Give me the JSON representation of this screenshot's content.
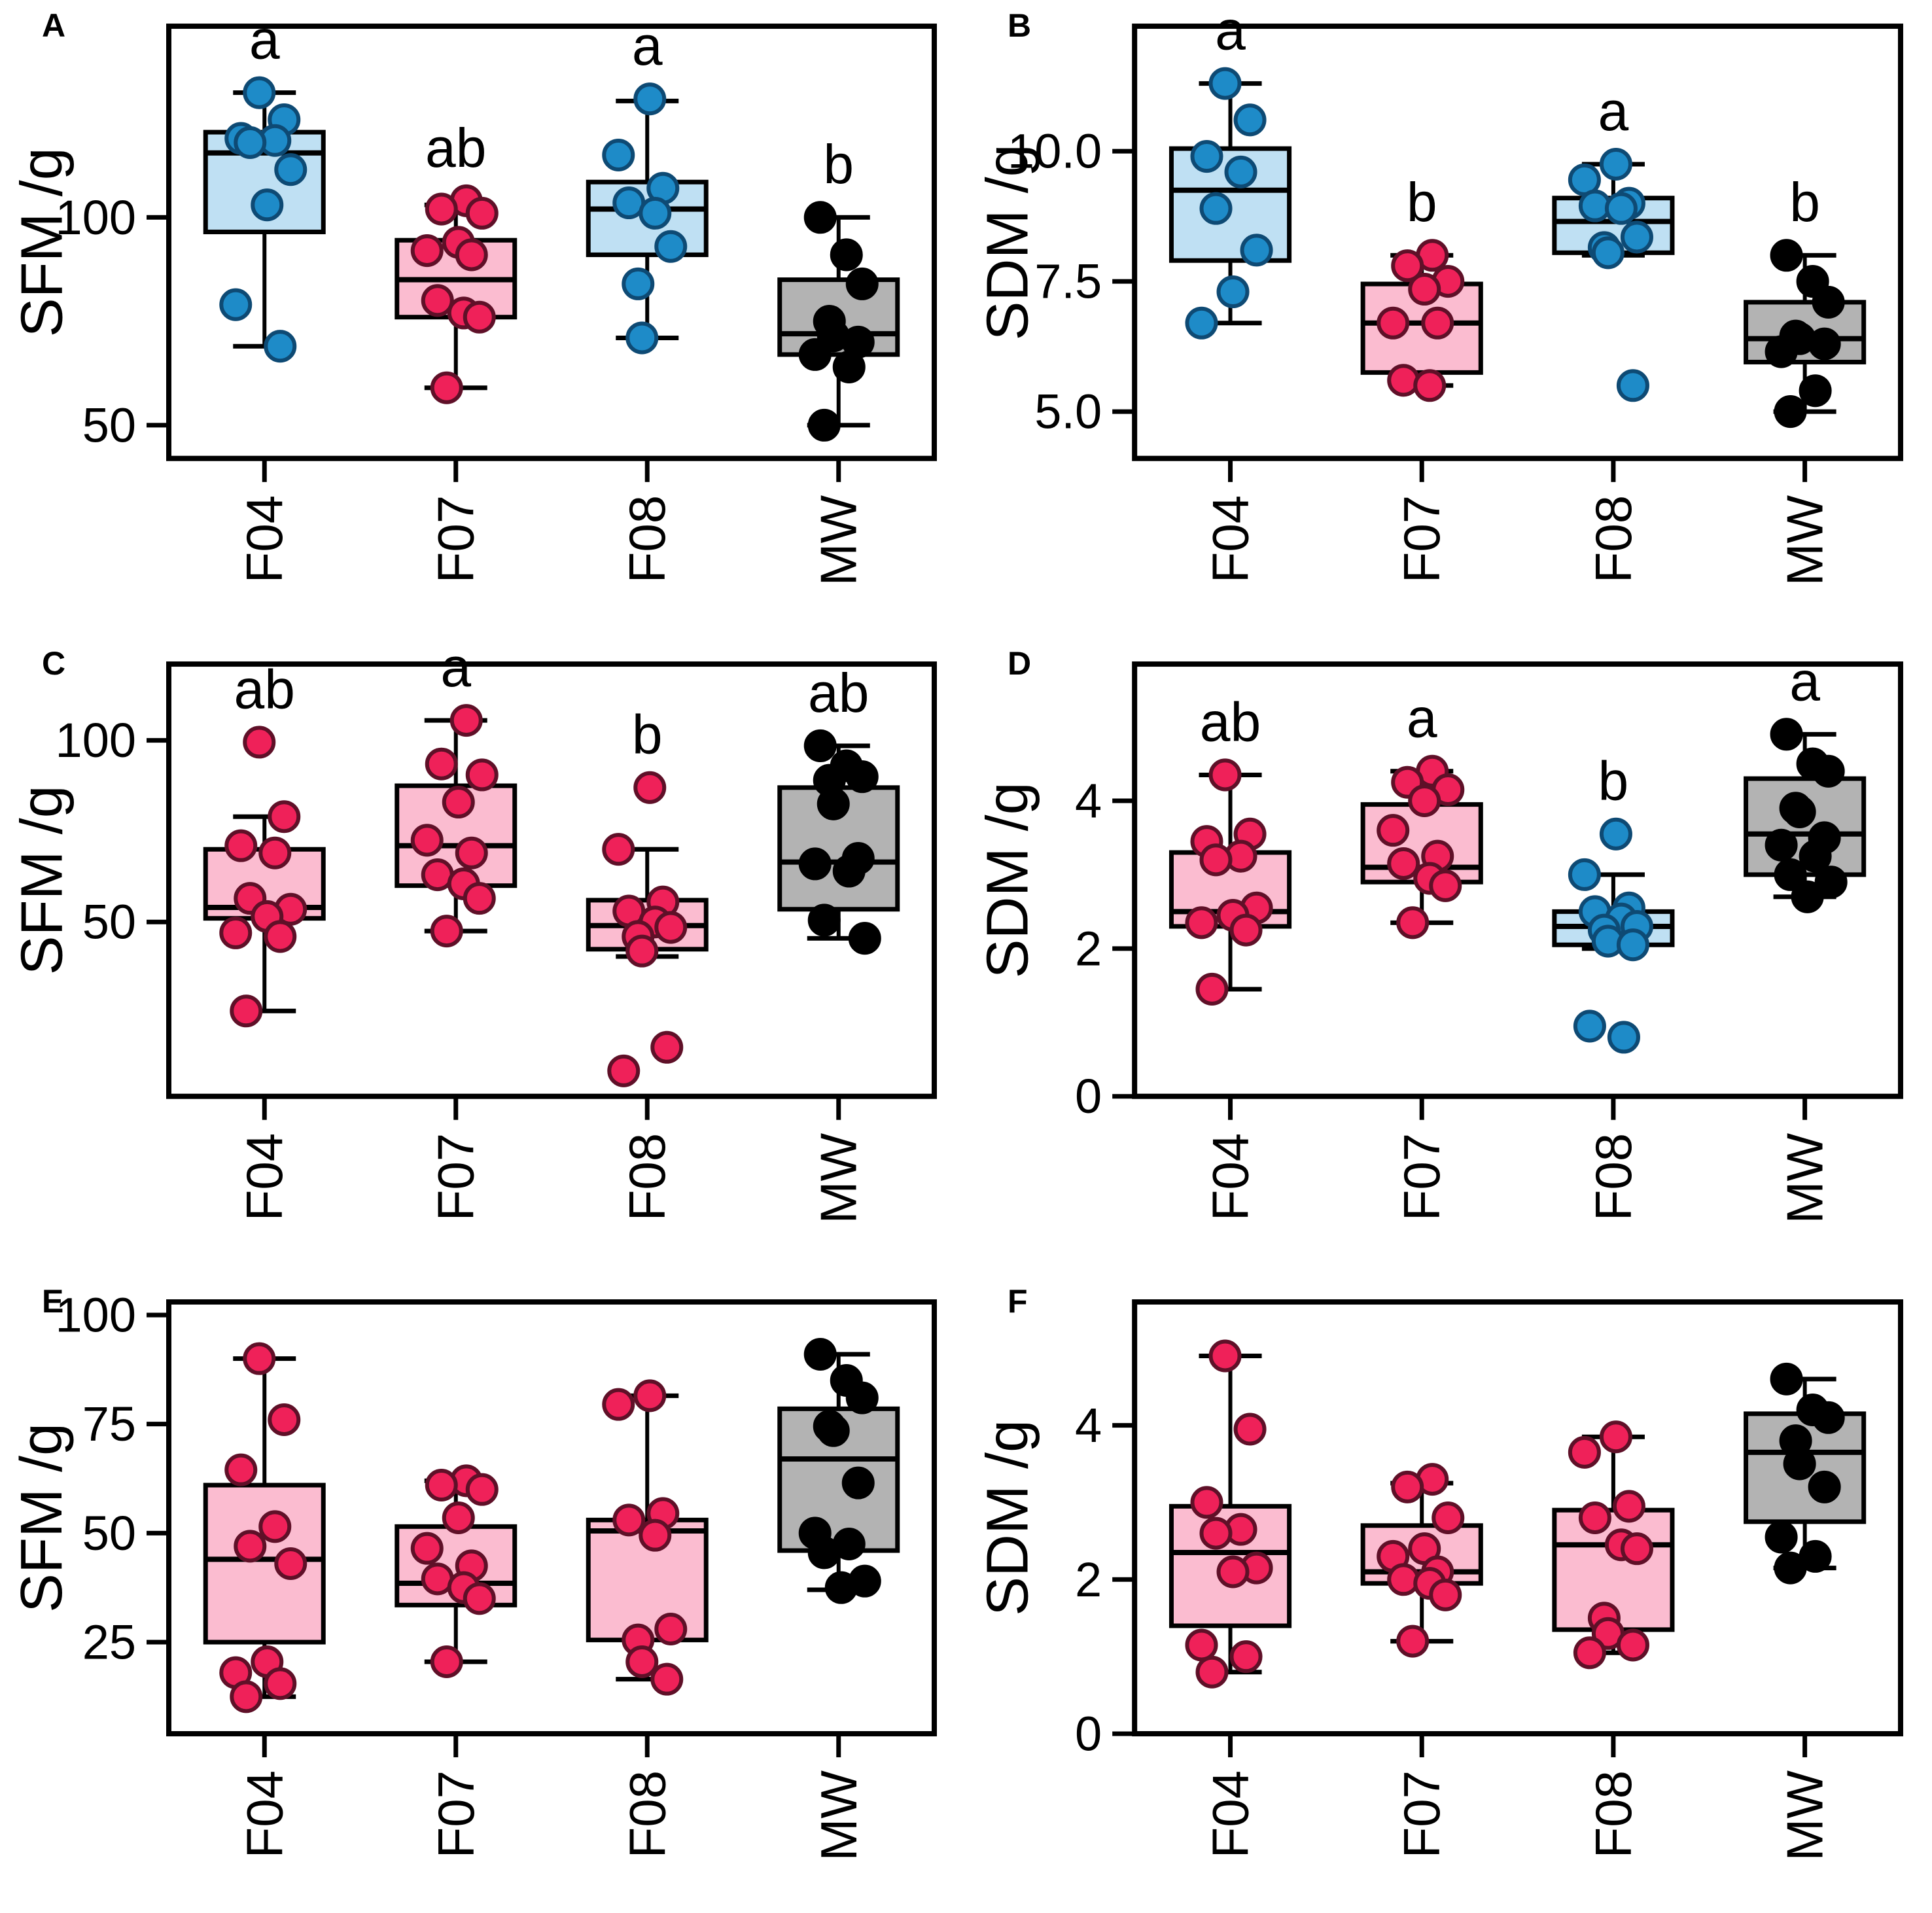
{
  "figure": {
    "background": "#ffffff"
  },
  "colors": {
    "frame": "#000000",
    "blue_box": "#bfe0f3",
    "blue_point": "#1e8bc8",
    "blue_point_stroke": "#0e4a74",
    "pink_box": "#fbbcd0",
    "pink_point": "#ef2159",
    "pink_point_stroke": "#5f1028",
    "gray_box": "#b3b3b3",
    "black_point": "#000000",
    "black_point_stroke": "#000000"
  },
  "chart_data": [
    {
      "panel": "A",
      "type": "box",
      "ylabel": "SFM /g",
      "categories": [
        "F04",
        "F07",
        "F08",
        "MW"
      ],
      "ytick_labels": [
        "50",
        "100"
      ],
      "ytick_values": [
        50,
        100
      ],
      "ylim": [
        42,
        146
      ],
      "grid": false,
      "groups": [
        {
          "name": "F04",
          "sig": "a",
          "color": "blue",
          "q1": 96.5,
          "median": 115.5,
          "q3": 120.5,
          "whisker_low": 69,
          "whisker_high": 130,
          "points": [
            130,
            123.5,
            119,
            118.5,
            118,
            111.5,
            103,
            79,
            69
          ]
        },
        {
          "name": "F07",
          "sig": "ab",
          "color": "pink",
          "q1": 76,
          "median": 85,
          "q3": 94.5,
          "whisker_low": 59,
          "whisker_high": 103,
          "points": [
            104,
            102,
            101,
            94,
            92,
            91,
            80,
            77,
            76,
            59
          ]
        },
        {
          "name": "F08",
          "sig": "a",
          "color": "blue",
          "q1": 91,
          "median": 102,
          "q3": 108.5,
          "whisker_low": 71,
          "whisker_high": 128,
          "points": [
            128.5,
            115,
            107,
            103.5,
            101,
            93,
            84,
            71
          ]
        },
        {
          "name": "MW",
          "sig": "b",
          "color": "gray",
          "q1": 67,
          "median": 72,
          "q3": 85,
          "whisker_low": 50,
          "whisker_high": 100,
          "points": [
            100,
            91,
            84,
            75,
            71.5,
            70,
            67,
            64,
            50
          ]
        }
      ]
    },
    {
      "panel": "B",
      "type": "box",
      "ylabel": "SDM /g",
      "categories": [
        "F04",
        "F07",
        "F08",
        "MW"
      ],
      "ytick_labels": [
        "5.0",
        "7.5",
        "10.0"
      ],
      "ytick_values": [
        5.0,
        7.5,
        10.0
      ],
      "ylim": [
        4.1,
        12.4
      ],
      "grid": false,
      "groups": [
        {
          "name": "F04",
          "sig": "a",
          "color": "blue",
          "q1": 7.9,
          "median": 9.25,
          "q3": 10.05,
          "whisker_low": 6.7,
          "whisker_high": 11.3,
          "points": [
            11.3,
            10.6,
            9.9,
            9.6,
            8.9,
            8.1,
            7.3,
            6.7
          ]
        },
        {
          "name": "F07",
          "sig": "b",
          "color": "pink",
          "q1": 5.75,
          "median": 6.7,
          "q3": 7.45,
          "whisker_low": 5.5,
          "whisker_high": 8.0,
          "points": [
            8.0,
            7.8,
            7.5,
            7.35,
            6.7,
            6.7,
            5.6,
            5.5
          ]
        },
        {
          "name": "F08",
          "sig": "a",
          "color": "blue",
          "q1": 8.05,
          "median": 8.65,
          "q3": 9.1,
          "whisker_low": 8.0,
          "whisker_high": 9.75,
          "points": [
            9.75,
            9.45,
            9.0,
            8.95,
            8.9,
            8.35,
            8.15,
            8.05,
            5.5
          ]
        },
        {
          "name": "MW",
          "sig": "b",
          "color": "gray",
          "q1": 5.95,
          "median": 6.4,
          "q3": 7.1,
          "whisker_low": 5.0,
          "whisker_high": 8.0,
          "points": [
            8.0,
            7.5,
            7.1,
            6.45,
            6.4,
            6.3,
            6.15,
            5.4,
            5.0
          ]
        }
      ]
    },
    {
      "panel": "C",
      "type": "box",
      "ylabel": "SFM /g",
      "categories": [
        "F04",
        "F07",
        "F08",
        "MW"
      ],
      "ytick_labels": [
        "50",
        "100"
      ],
      "ytick_values": [
        50,
        100
      ],
      "ylim": [
        2,
        121
      ],
      "grid": false,
      "groups": [
        {
          "name": "F04",
          "sig": "ab",
          "color": "pink",
          "q1": 51,
          "median": 54,
          "q3": 70,
          "whisker_low": 25.5,
          "whisker_high": 79,
          "points": [
            99.5,
            79,
            71,
            69,
            56.5,
            53.5,
            51.5,
            47,
            46,
            25.5
          ]
        },
        {
          "name": "F07",
          "sig": "a",
          "color": "pink",
          "q1": 60,
          "median": 71,
          "q3": 87.5,
          "whisker_low": 47.5,
          "whisker_high": 105.5,
          "points": [
            105.5,
            93.5,
            90.5,
            83,
            72.5,
            69,
            63,
            60.5,
            56.5,
            47.5
          ]
        },
        {
          "name": "F08",
          "sig": "b",
          "color": "pink",
          "q1": 42.5,
          "median": 49,
          "q3": 56,
          "whisker_low": 40.5,
          "whisker_high": 70,
          "points": [
            87,
            70,
            55.5,
            53,
            50,
            48.5,
            46,
            42,
            15.5,
            9
          ]
        },
        {
          "name": "MW",
          "sig": "ab",
          "color": "gray",
          "q1": 53.5,
          "median": 66.5,
          "q3": 87,
          "whisker_low": 45.5,
          "whisker_high": 98.5,
          "points": [
            98.5,
            93,
            90,
            89,
            82.5,
            67.5,
            66,
            64,
            50.5,
            45.5
          ]
        }
      ]
    },
    {
      "panel": "D",
      "type": "box",
      "ylabel": "SDM /g",
      "categories": [
        "F04",
        "F07",
        "F08",
        "MW"
      ],
      "ytick_labels": [
        "0",
        "2",
        "4"
      ],
      "ytick_values": [
        0,
        2,
        4
      ],
      "ylim": [
        0,
        5.85
      ],
      "grid": false,
      "groups": [
        {
          "name": "F04",
          "sig": "ab",
          "color": "pink",
          "q1": 2.3,
          "median": 2.5,
          "q3": 3.3,
          "whisker_low": 1.45,
          "whisker_high": 4.35,
          "points": [
            4.35,
            3.55,
            3.45,
            3.25,
            3.2,
            2.55,
            2.45,
            2.35,
            2.25,
            1.45
          ]
        },
        {
          "name": "F07",
          "sig": "a",
          "color": "pink",
          "q1": 2.9,
          "median": 3.1,
          "q3": 3.95,
          "whisker_low": 2.35,
          "whisker_high": 4.4,
          "points": [
            4.4,
            4.25,
            4.15,
            4.0,
            3.6,
            3.25,
            3.15,
            2.95,
            2.85,
            2.35
          ]
        },
        {
          "name": "F08",
          "sig": "b",
          "color": "blue",
          "q1": 2.05,
          "median": 2.3,
          "q3": 2.5,
          "whisker_low": 2.0,
          "whisker_high": 3.0,
          "points": [
            3.55,
            3.0,
            2.55,
            2.5,
            2.4,
            2.3,
            2.25,
            2.1,
            2.05,
            0.95,
            0.8
          ]
        },
        {
          "name": "MW",
          "sig": "a",
          "color": "gray",
          "q1": 3.0,
          "median": 3.55,
          "q3": 4.3,
          "whisker_low": 2.7,
          "whisker_high": 4.9,
          "points": [
            4.9,
            4.5,
            4.4,
            3.9,
            3.85,
            3.5,
            3.4,
            3.25,
            3.0,
            2.9,
            2.7
          ]
        }
      ]
    },
    {
      "panel": "E",
      "type": "box",
      "ylabel": "SFM /g",
      "categories": [
        "F04",
        "F07",
        "F08",
        "MW"
      ],
      "ytick_labels": [
        "25",
        "50",
        "75",
        "100"
      ],
      "ytick_values": [
        25,
        50,
        75,
        100
      ],
      "ylim": [
        4,
        103
      ],
      "grid": false,
      "groups": [
        {
          "name": "F04",
          "sig": "",
          "color": "pink",
          "q1": 25,
          "median": 44,
          "q3": 61,
          "whisker_low": 12.5,
          "whisker_high": 90,
          "points": [
            90,
            76,
            64.5,
            51.5,
            47,
            43,
            20.5,
            18,
            15.5,
            12.5
          ]
        },
        {
          "name": "F07",
          "sig": "",
          "color": "pink",
          "q1": 33.5,
          "median": 38.5,
          "q3": 51.5,
          "whisker_low": 20.5,
          "whisker_high": 62,
          "points": [
            62,
            61,
            60,
            53.5,
            46.5,
            42.5,
            39.5,
            37.5,
            35,
            20.5
          ]
        },
        {
          "name": "F08",
          "sig": "",
          "color": "pink",
          "q1": 25.5,
          "median": 50.5,
          "q3": 53,
          "whisker_low": 16.5,
          "whisker_high": 81.5,
          "points": [
            81.5,
            79.5,
            54.5,
            53,
            49.5,
            28,
            25.5,
            20.5,
            16.5
          ]
        },
        {
          "name": "MW",
          "sig": "",
          "color": "gray",
          "q1": 46,
          "median": 67,
          "q3": 78.5,
          "whisker_low": 37,
          "whisker_high": 91,
          "points": [
            91,
            85,
            81,
            74.5,
            73.5,
            61.5,
            50,
            47.5,
            45.5,
            39,
            37.5
          ]
        }
      ]
    },
    {
      "panel": "F",
      "type": "box",
      "ylabel": "SDM /g",
      "categories": [
        "F04",
        "F07",
        "F08",
        "MW"
      ],
      "ytick_labels": [
        "0",
        "2",
        "4"
      ],
      "ytick_values": [
        0,
        2,
        4
      ],
      "ylim": [
        0,
        5.6
      ],
      "grid": false,
      "groups": [
        {
          "name": "F04",
          "sig": "",
          "color": "pink",
          "q1": 1.4,
          "median": 2.35,
          "q3": 2.95,
          "whisker_low": 0.8,
          "whisker_high": 4.9,
          "points": [
            4.9,
            3.95,
            3.0,
            2.65,
            2.6,
            2.15,
            2.1,
            1.15,
            1.0,
            0.8
          ]
        },
        {
          "name": "F07",
          "sig": "",
          "color": "pink",
          "q1": 1.95,
          "median": 2.1,
          "q3": 2.7,
          "whisker_low": 1.2,
          "whisker_high": 3.25,
          "points": [
            3.3,
            3.2,
            2.8,
            2.4,
            2.3,
            2.1,
            2.0,
            1.95,
            1.8,
            1.2
          ]
        },
        {
          "name": "F08",
          "sig": "",
          "color": "pink",
          "q1": 1.35,
          "median": 2.45,
          "q3": 2.9,
          "whisker_low": 1.05,
          "whisker_high": 3.85,
          "points": [
            3.85,
            3.65,
            2.95,
            2.8,
            2.45,
            2.4,
            1.5,
            1.3,
            1.15,
            1.05
          ]
        },
        {
          "name": "MW",
          "sig": "",
          "color": "gray",
          "q1": 2.75,
          "median": 3.65,
          "q3": 4.15,
          "whisker_low": 2.15,
          "whisker_high": 4.6,
          "points": [
            4.6,
            4.2,
            4.1,
            3.8,
            3.5,
            3.2,
            2.55,
            2.3,
            2.15
          ]
        }
      ]
    }
  ]
}
